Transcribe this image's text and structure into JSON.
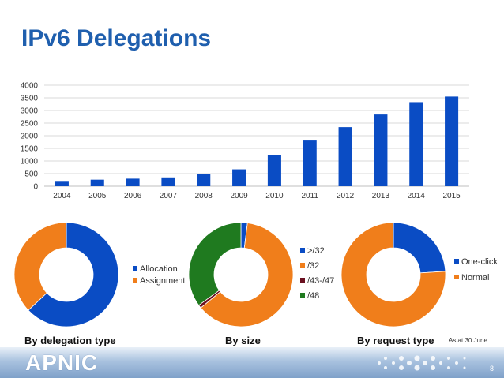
{
  "slide": {
    "title": "IPv6 Delegations",
    "note": "As at 30 June",
    "page_number": "8",
    "logo_text": "APNIC"
  },
  "colors": {
    "title": "#1f5fae",
    "bar": "#0a4cc4",
    "blue": "#0a4cc4",
    "orange": "#f07e1b",
    "darkred": "#6a1020",
    "green": "#1f7a1f"
  },
  "chart_data": [
    {
      "type": "bar",
      "categories": [
        "2004",
        "2005",
        "2006",
        "2007",
        "2008",
        "2009",
        "2010",
        "2011",
        "2012",
        "2013",
        "2014",
        "2015"
      ],
      "values": [
        210,
        260,
        300,
        350,
        490,
        670,
        1220,
        1810,
        2340,
        2840,
        3330,
        3550
      ],
      "yticks": [
        "0",
        "500",
        "1000",
        "1500",
        "2000",
        "2500",
        "3000",
        "3500",
        "4000"
      ],
      "ylim": [
        0,
        4000
      ],
      "grid": true,
      "legend": "none"
    },
    {
      "type": "pie",
      "donut": true,
      "caption": "By delegation type",
      "labels": [
        "Allocation",
        "Assignment"
      ],
      "values": [
        63,
        37
      ],
      "colors": [
        "#0a4cc4",
        "#f07e1b"
      ],
      "legend": "right"
    },
    {
      "type": "pie",
      "donut": true,
      "caption": "By size",
      "labels": [
        ">/32",
        "/32",
        "/43-/47",
        "/48"
      ],
      "values": [
        2,
        62,
        1,
        35
      ],
      "colors": [
        "#0a4cc4",
        "#f07e1b",
        "#6a1020",
        "#1f7a1f"
      ],
      "legend": "right"
    },
    {
      "type": "pie",
      "donut": true,
      "caption": "By request type",
      "labels": [
        "One-click",
        "Normal"
      ],
      "values": [
        24,
        76
      ],
      "colors": [
        "#0a4cc4",
        "#f07e1b"
      ],
      "legend": "right"
    }
  ]
}
